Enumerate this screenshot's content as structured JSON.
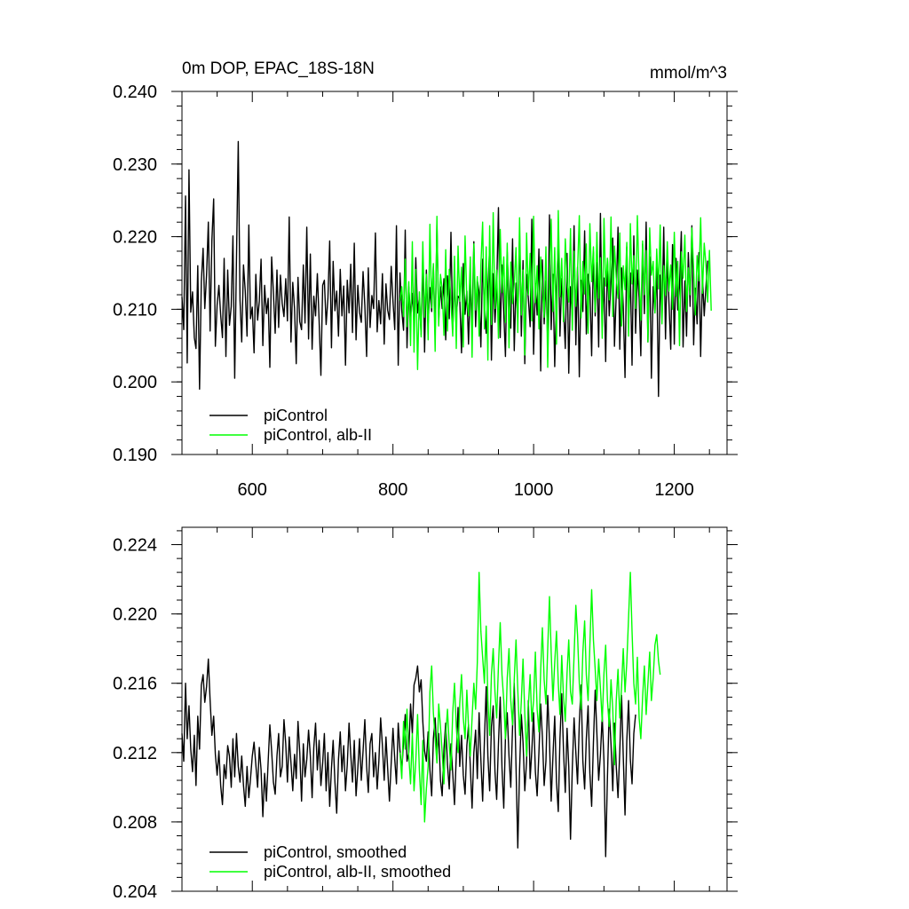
{
  "chart_data": [
    {
      "type": "line",
      "title": "0m DOP, EPAC_18S-18N",
      "units": "mmol/m^3",
      "xlim": [
        500,
        1275
      ],
      "ylim": [
        0.19,
        0.24
      ],
      "x_ticks": [
        600,
        800,
        1000,
        1200
      ],
      "x_tick_labels": [
        "600",
        "800",
        "1000",
        "1200"
      ],
      "y_ticks": [
        0.19,
        0.2,
        0.21,
        0.22,
        0.23,
        0.24
      ],
      "y_tick_labels": [
        "0.190",
        "0.200",
        "0.210",
        "0.220",
        "0.230",
        "0.240"
      ],
      "legend_position": "lower-left",
      "series": [
        {
          "name": "piControl",
          "color": "#000000",
          "x_start": 500,
          "x_step": 2.5,
          "values": [
            0.2117,
            0.2072,
            0.2256,
            0.2026,
            0.2292,
            0.2096,
            0.2124,
            0.2061,
            0.2046,
            0.216,
            0.199,
            0.2138,
            0.2184,
            0.2101,
            0.2147,
            0.222,
            0.207,
            0.2195,
            0.2252,
            0.2049,
            0.2106,
            0.2133,
            0.2092,
            0.2061,
            0.217,
            0.2035,
            0.2154,
            0.2078,
            0.2104,
            0.2201,
            0.2005,
            0.217,
            0.2331,
            0.2112,
            0.2055,
            0.2161,
            0.2125,
            0.2063,
            0.2216,
            0.2087,
            0.2103,
            0.204,
            0.2148,
            0.2085,
            0.2111,
            0.2169,
            0.205,
            0.2133,
            0.2094,
            0.2115,
            0.202,
            0.2172,
            0.2123,
            0.2067,
            0.2154,
            0.2075,
            0.2147,
            0.2108,
            0.209,
            0.2142,
            0.2084,
            0.2227,
            0.2055,
            0.2137,
            0.2101,
            0.2025,
            0.2144,
            0.2083,
            0.2072,
            0.2161,
            0.2081,
            0.2213,
            0.2059,
            0.2176,
            0.2045,
            0.2118,
            0.2091,
            0.2149,
            0.2084,
            0.2009,
            0.2133,
            0.214,
            0.2079,
            0.2115,
            0.2194,
            0.2047,
            0.2166,
            0.2098,
            0.2125,
            0.2063,
            0.2155,
            0.2091,
            0.2132,
            0.2023,
            0.214,
            0.2095,
            0.2162,
            0.2068,
            0.2191,
            0.2058,
            0.2133,
            0.2096,
            0.2082,
            0.2152,
            0.2105,
            0.2035,
            0.2157,
            0.2075,
            0.2119,
            0.2101,
            0.2205,
            0.2069,
            0.2112,
            0.208,
            0.2149,
            0.2052,
            0.2135,
            0.2099,
            0.2086,
            0.2159,
            0.2111,
            0.2072,
            0.2215,
            0.2023,
            0.215,
            0.2098,
            0.2071,
            0.2209,
            0.2047,
            0.2131,
            0.2089,
            0.2122,
            0.2079,
            0.2171,
            0.2095,
            0.2116,
            0.2065,
            0.2172,
            0.2041,
            0.2154,
            0.208,
            0.213,
            0.2097,
            0.216,
            0.2063,
            0.2219,
            0.2085,
            0.2131,
            0.2101,
            0.2142,
            0.2058,
            0.2146,
            0.2087,
            0.2206,
            0.2072,
            0.2136,
            0.2092,
            0.2118,
            0.2115,
            0.204,
            0.2163,
            0.2093,
            0.2125,
            0.2052,
            0.2135,
            0.2083,
            0.2193,
            0.2076,
            0.214,
            0.2123,
            0.2048,
            0.2169,
            0.2102,
            0.2067,
            0.2128,
            0.2186,
            0.203,
            0.2149,
            0.2082,
            0.2129,
            0.224,
            0.2061,
            0.2161,
            0.2095,
            0.2035,
            0.2179,
            0.2112,
            0.2074,
            0.2197,
            0.2043,
            0.2136,
            0.2085,
            0.2202,
            0.2063,
            0.2167,
            0.2025,
            0.2148,
            0.2115,
            0.2076,
            0.2224,
            0.2038,
            0.2135,
            0.2092,
            0.2183,
            0.2015,
            0.2168,
            0.208,
            0.2139,
            0.2055,
            0.223,
            0.2072,
            0.2148,
            0.2021,
            0.212,
            0.2196,
            0.2063,
            0.2142,
            0.2103,
            0.2046,
            0.2177,
            0.2012,
            0.2131,
            0.2088,
            0.2215,
            0.2051,
            0.2158,
            0.2007,
            0.214,
            0.2097,
            0.2208,
            0.2066,
            0.2148,
            0.213,
            0.2036,
            0.2179,
            0.2091,
            0.2164,
            0.2048,
            0.2232,
            0.2076,
            0.2143,
            0.2028,
            0.217,
            0.2091,
            0.2139,
            0.2198,
            0.2049,
            0.212,
            0.2213,
            0.2045,
            0.2157,
            0.2104,
            0.2006,
            0.2186,
            0.208,
            0.215,
            0.2023,
            0.2201,
            0.2067,
            0.2154,
            0.2115,
            0.2036,
            0.219,
            0.2094,
            0.222,
            0.2055,
            0.2172,
            0.2005,
            0.2131,
            0.2095,
            0.2162,
            0.198,
            0.2147,
            0.2086,
            0.2213,
            0.2059,
            0.2175,
            0.2109,
            0.2045,
            0.2189,
            0.2052,
            0.217,
            0.2099,
            0.2133,
            0.2207,
            0.2048,
            0.2139,
            0.2063,
            0.2178,
            0.2104,
            0.2215,
            0.2051,
            0.2129,
            0.208,
            0.2178,
            0.2035,
            0.2146,
            0.2091,
            0.213,
            0.2167
          ]
        },
        {
          "name": "piControl, alb-II",
          "color": "#00ff00",
          "x_start": 810,
          "x_step": 2.5,
          "values": [
            0.2112,
            0.2131,
            0.209,
            0.2169,
            0.2076,
            0.2138,
            0.205,
            0.2193,
            0.2041,
            0.2155,
            0.2017,
            0.2124,
            0.2062,
            0.2193,
            0.2089,
            0.2148,
            0.2058,
            0.2217,
            0.2102,
            0.2163,
            0.2042,
            0.2228,
            0.2077,
            0.2148,
            0.2128,
            0.2064,
            0.2182,
            0.207,
            0.2155,
            0.211,
            0.2063,
            0.2173,
            0.2046,
            0.2187,
            0.2111,
            0.2158,
            0.2048,
            0.2201,
            0.2115,
            0.2091,
            0.2172,
            0.2034,
            0.219,
            0.2099,
            0.2145,
            0.2063,
            0.216,
            0.222,
            0.2073,
            0.2186,
            0.203,
            0.2215,
            0.2079,
            0.2233,
            0.2101,
            0.2154,
            0.206,
            0.221,
            0.2123,
            0.2172,
            0.2082,
            0.2191,
            0.2047,
            0.2165,
            0.2108,
            0.2135,
            0.2185,
            0.2068,
            0.2226,
            0.2092,
            0.2154,
            0.2037,
            0.2205,
            0.212,
            0.2177,
            0.2084,
            0.2228,
            0.2109,
            0.216,
            0.2073,
            0.2172,
            0.2133,
            0.2089,
            0.2186,
            0.202,
            0.2143,
            0.2224,
            0.2097,
            0.2185,
            0.2052,
            0.2236,
            0.2117,
            0.217,
            0.2083,
            0.2197,
            0.2138,
            0.211,
            0.2211,
            0.2071,
            0.218,
            0.2104,
            0.2153,
            0.2229,
            0.2088,
            0.2166,
            0.2121,
            0.219,
            0.2067,
            0.2218,
            0.2138,
            0.2186,
            0.2096,
            0.2206,
            0.2115,
            0.2171,
            0.206,
            0.2225,
            0.2132,
            0.217,
            0.2113,
            0.2227,
            0.209,
            0.2187,
            0.2144,
            0.2115,
            0.2205,
            0.2077,
            0.216,
            0.2127,
            0.2192,
            0.2063,
            0.2218,
            0.2135,
            0.2174,
            0.2101,
            0.2229,
            0.214,
            0.2085,
            0.2194,
            0.212,
            0.2181,
            0.2055,
            0.2212,
            0.2147,
            0.2166,
            0.2095,
            0.2183,
            0.2128,
            0.2216,
            0.208,
            0.216,
            0.2119,
            0.2193,
            0.2125,
            0.2161,
            0.21,
            0.2206,
            0.2118,
            0.2166,
            0.205,
            0.2179,
            0.2143,
            0.2202,
            0.2097,
            0.2157,
            0.212,
            0.2212,
            0.2154,
            0.2092,
            0.2174,
            0.2139,
            0.2226,
            0.2122,
            0.2191,
            0.2163,
            0.211,
            0.2181,
            0.2098
          ]
        }
      ]
    },
    {
      "type": "line",
      "xlim": [
        500,
        1275
      ],
      "ylim": [
        0.204,
        0.225
      ],
      "x_ticks": [
        600,
        800,
        1000,
        1200
      ],
      "y_ticks": [
        0.204,
        0.208,
        0.212,
        0.216,
        0.22,
        0.224
      ],
      "y_tick_labels": [
        "0.204",
        "0.208",
        "0.212",
        "0.216",
        "0.220",
        "0.224"
      ],
      "legend_position": "lower-left",
      "series": [
        {
          "name": "piControl, smoothed",
          "color": "#000000",
          "x_start": 500,
          "x_step": 2.5,
          "values": [
            0.2131,
            0.2115,
            0.216,
            0.2128,
            0.2147,
            0.2122,
            0.2109,
            0.213,
            0.2101,
            0.2141,
            0.2122,
            0.2159,
            0.2165,
            0.2149,
            0.2158,
            0.2174,
            0.215,
            0.213,
            0.2141,
            0.2119,
            0.2107,
            0.2121,
            0.2101,
            0.209,
            0.2113,
            0.2105,
            0.2124,
            0.2118,
            0.21,
            0.2128,
            0.2106,
            0.2131,
            0.2112,
            0.2103,
            0.2118,
            0.2101,
            0.2089,
            0.2112,
            0.2094,
            0.2105,
            0.2118,
            0.2126,
            0.2113,
            0.21,
            0.2123,
            0.211,
            0.2083,
            0.2108,
            0.2092,
            0.2115,
            0.2136,
            0.2121,
            0.2103,
            0.2096,
            0.2118,
            0.2131,
            0.2106,
            0.2112,
            0.2139,
            0.2125,
            0.2103,
            0.2129,
            0.2114,
            0.2098,
            0.2119,
            0.2105,
            0.2138,
            0.212,
            0.2092,
            0.2125,
            0.2106,
            0.2116,
            0.2133,
            0.2118,
            0.2094,
            0.2123,
            0.2137,
            0.211,
            0.2127,
            0.2101,
            0.2114,
            0.2131,
            0.2098,
            0.212,
            0.2089,
            0.2111,
            0.2127,
            0.2103,
            0.2085,
            0.2116,
            0.2132,
            0.2109,
            0.2124,
            0.2098,
            0.2113,
            0.2137,
            0.2119,
            0.2103,
            0.2127,
            0.2095,
            0.2111,
            0.2128,
            0.2104,
            0.2121,
            0.2139,
            0.2112,
            0.2097,
            0.2125,
            0.2131,
            0.2106,
            0.212,
            0.2099,
            0.2115,
            0.214,
            0.2124,
            0.2104,
            0.2129,
            0.2111,
            0.2092,
            0.2114,
            0.2134,
            0.2116,
            0.2102,
            0.2137,
            0.2121,
            0.211,
            0.2126,
            0.2142,
            0.2115,
            0.212,
            0.2148,
            0.2131,
            0.2159,
            0.2163,
            0.217,
            0.2155,
            0.2162,
            0.2138,
            0.2121,
            0.2115,
            0.2132,
            0.211,
            0.2095,
            0.2128,
            0.214,
            0.2118,
            0.2131,
            0.2104,
            0.2095,
            0.2122,
            0.2137,
            0.2113,
            0.2099,
            0.2125,
            0.2108,
            0.209,
            0.2118,
            0.2146,
            0.2112,
            0.213,
            0.2107,
            0.2096,
            0.2124,
            0.2136,
            0.2112,
            0.2088,
            0.212,
            0.2133,
            0.2105,
            0.2143,
            0.2116,
            0.2092,
            0.2127,
            0.2158,
            0.2118,
            0.2098,
            0.2135,
            0.2147,
            0.2109,
            0.2093,
            0.2125,
            0.2152,
            0.2111,
            0.2088,
            0.2129,
            0.2143,
            0.2118,
            0.21,
            0.2135,
            0.216,
            0.2112,
            0.2065,
            0.211,
            0.2142,
            0.2126,
            0.2098,
            0.2115,
            0.215,
            0.2105,
            0.2121,
            0.2143,
            0.2109,
            0.2095,
            0.212,
            0.2148,
            0.2129,
            0.2101,
            0.2115,
            0.2153,
            0.2127,
            0.2092,
            0.2118,
            0.2141,
            0.2103,
            0.2086,
            0.2128,
            0.2154,
            0.2121,
            0.2097,
            0.2134,
            0.2112,
            0.207,
            0.2111,
            0.214,
            0.212,
            0.2102,
            0.2137,
            0.2159,
            0.2115,
            0.2099,
            0.2128,
            0.2147,
            0.2108,
            0.2089,
            0.2126,
            0.2156,
            0.2131,
            0.2104,
            0.2119,
            0.2141,
            0.2115,
            0.206,
            0.2106,
            0.2145,
            0.2125,
            0.2098,
            0.2137,
            0.2112,
            0.2094,
            0.2121,
            0.2153,
            0.2118,
            0.2084,
            0.2127,
            0.215,
            0.2116,
            0.2102,
            0.2131,
            0.2142
          ]
        },
        {
          "name": "piControl, alb-II, smoothed",
          "color": "#00ff00",
          "x_start": 810,
          "x_step": 2.5,
          "values": [
            0.212,
            0.2105,
            0.2138,
            0.2122,
            0.2145,
            0.2118,
            0.2102,
            0.2131,
            0.2098,
            0.2115,
            0.2142,
            0.211,
            0.209,
            0.2127,
            0.208,
            0.2099,
            0.2112,
            0.2155,
            0.217,
            0.2143,
            0.2128,
            0.2114,
            0.2148,
            0.2135,
            0.212,
            0.2102,
            0.213,
            0.2145,
            0.2124,
            0.211,
            0.2143,
            0.216,
            0.2135,
            0.212,
            0.2148,
            0.2165,
            0.214,
            0.2128,
            0.2156,
            0.2135,
            0.2118,
            0.214,
            0.216,
            0.2145,
            0.2172,
            0.2224,
            0.219,
            0.2175,
            0.216,
            0.2193,
            0.215,
            0.213,
            0.2165,
            0.218,
            0.2155,
            0.214,
            0.217,
            0.2195,
            0.2165,
            0.215,
            0.2128,
            0.2163,
            0.218,
            0.215,
            0.2136,
            0.2162,
            0.2185,
            0.2156,
            0.213,
            0.215,
            0.2174,
            0.2142,
            0.2118,
            0.2147,
            0.2165,
            0.2138,
            0.215,
            0.2178,
            0.2145,
            0.2132,
            0.2168,
            0.2192,
            0.2162,
            0.2148,
            0.218,
            0.221,
            0.2178,
            0.215,
            0.2172,
            0.219,
            0.216,
            0.2142,
            0.2176,
            0.2152,
            0.2138,
            0.2166,
            0.2185,
            0.2155,
            0.2148,
            0.2176,
            0.2205,
            0.2188,
            0.216,
            0.2145,
            0.2178,
            0.2196,
            0.2165,
            0.215,
            0.2182,
            0.2214,
            0.2185,
            0.2168,
            0.215,
            0.2174,
            0.2157,
            0.2138,
            0.2166,
            0.2182,
            0.215,
            0.2135,
            0.2162,
            0.2145,
            0.2113,
            0.215,
            0.2168,
            0.214,
            0.2158,
            0.218,
            0.2155,
            0.2172,
            0.2198,
            0.2224,
            0.219,
            0.216,
            0.2148,
            0.2175,
            0.214,
            0.2128,
            0.2152,
            0.217,
            0.2142,
            0.216,
            0.2178,
            0.215,
            0.2163,
            0.2182,
            0.2188,
            0.2173,
            0.2165
          ]
        }
      ]
    }
  ]
}
